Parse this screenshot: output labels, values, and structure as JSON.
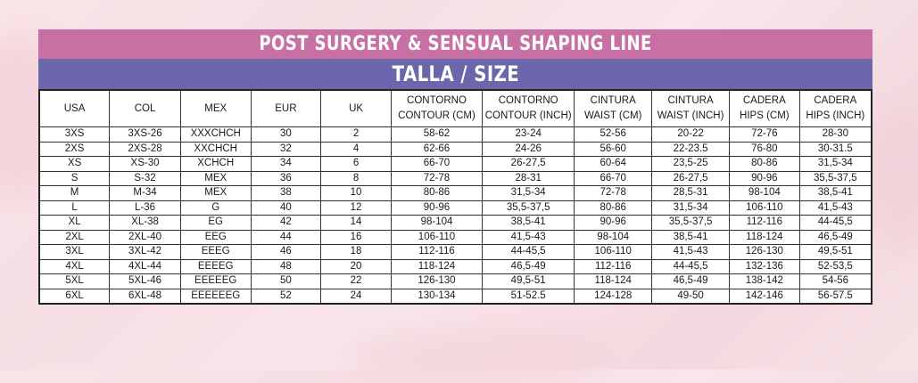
{
  "banner": {
    "title": "POST SURGERY & SENSUAL SHAPING LINE",
    "subtitle": "TALLA / SIZE"
  },
  "table": {
    "headers": [
      [
        "USA"
      ],
      [
        "COL"
      ],
      [
        "MEX"
      ],
      [
        "EUR"
      ],
      [
        "UK"
      ],
      [
        "CONTORNO",
        "CONTOUR (CM)"
      ],
      [
        "CONTORNO",
        "CONTOUR (INCH)"
      ],
      [
        "CINTURA",
        "WAIST (CM)"
      ],
      [
        "CINTURA",
        "WAIST (INCH)"
      ],
      [
        "CADERA",
        "HIPS (CM)"
      ],
      [
        "CADERA",
        "HIPS (INCH)"
      ]
    ],
    "rows": [
      [
        "3XS",
        "3XS-26",
        "XXXCHCH",
        "30",
        "2",
        "58-62",
        "23-24",
        "52-56",
        "20-22",
        "72-76",
        "28-30"
      ],
      [
        "2XS",
        "2XS-28",
        "XXCHCH",
        "32",
        "4",
        "62-66",
        "24-26",
        "56-60",
        "22-23.5",
        "76-80",
        "30-31.5"
      ],
      [
        "XS",
        "XS-30",
        "XCHCH",
        "34",
        "6",
        "66-70",
        "26-27,5",
        "60-64",
        "23,5-25",
        "80-86",
        "31,5-34"
      ],
      [
        "S",
        "S-32",
        "MEX",
        "36",
        "8",
        "72-78",
        "28-31",
        "66-70",
        "26-27,5",
        "90-96",
        "35,5-37,5"
      ],
      [
        "M",
        "M-34",
        "MEX",
        "38",
        "10",
        "80-86",
        "31,5-34",
        "72-78",
        "28,5-31",
        "98-104",
        "38,5-41"
      ],
      [
        "L",
        "L-36",
        "G",
        "40",
        "12",
        "90-96",
        "35,5-37,5",
        "80-86",
        "31,5-34",
        "106-110",
        "41,5-43"
      ],
      [
        "XL",
        "XL-38",
        "EG",
        "42",
        "14",
        "98-104",
        "38,5-41",
        "90-96",
        "35,5-37,5",
        "112-116",
        "44-45,5"
      ],
      [
        "2XL",
        "2XL-40",
        "EEG",
        "44",
        "16",
        "106-110",
        "41,5-43",
        "98-104",
        "38,5-41",
        "118-124",
        "46,5-49"
      ],
      [
        "3XL",
        "3XL-42",
        "EEEG",
        "46",
        "18",
        "112-116",
        "44-45,5",
        "106-110",
        "41,5-43",
        "126-130",
        "49,5-51"
      ],
      [
        "4XL",
        "4XL-44",
        "EEEEG",
        "48",
        "20",
        "118-124",
        "46,5-49",
        "112-116",
        "44-45,5",
        "132-136",
        "52-53,5"
      ],
      [
        "5XL",
        "5XL-46",
        "EEEEEG",
        "50",
        "22",
        "126-130",
        "49,5-51",
        "118-124",
        "46,5-49",
        "138-142",
        "54-56"
      ],
      [
        "6XL",
        "6XL-48",
        "EEEEEEG",
        "52",
        "24",
        "130-134",
        "51-52.5",
        "124-128",
        "49-50",
        "142-146",
        "56-57.5"
      ]
    ]
  },
  "colors": {
    "banner_top": "#c86fa3",
    "banner_bottom": "#6c66ad",
    "background": "#f6dfe4"
  }
}
